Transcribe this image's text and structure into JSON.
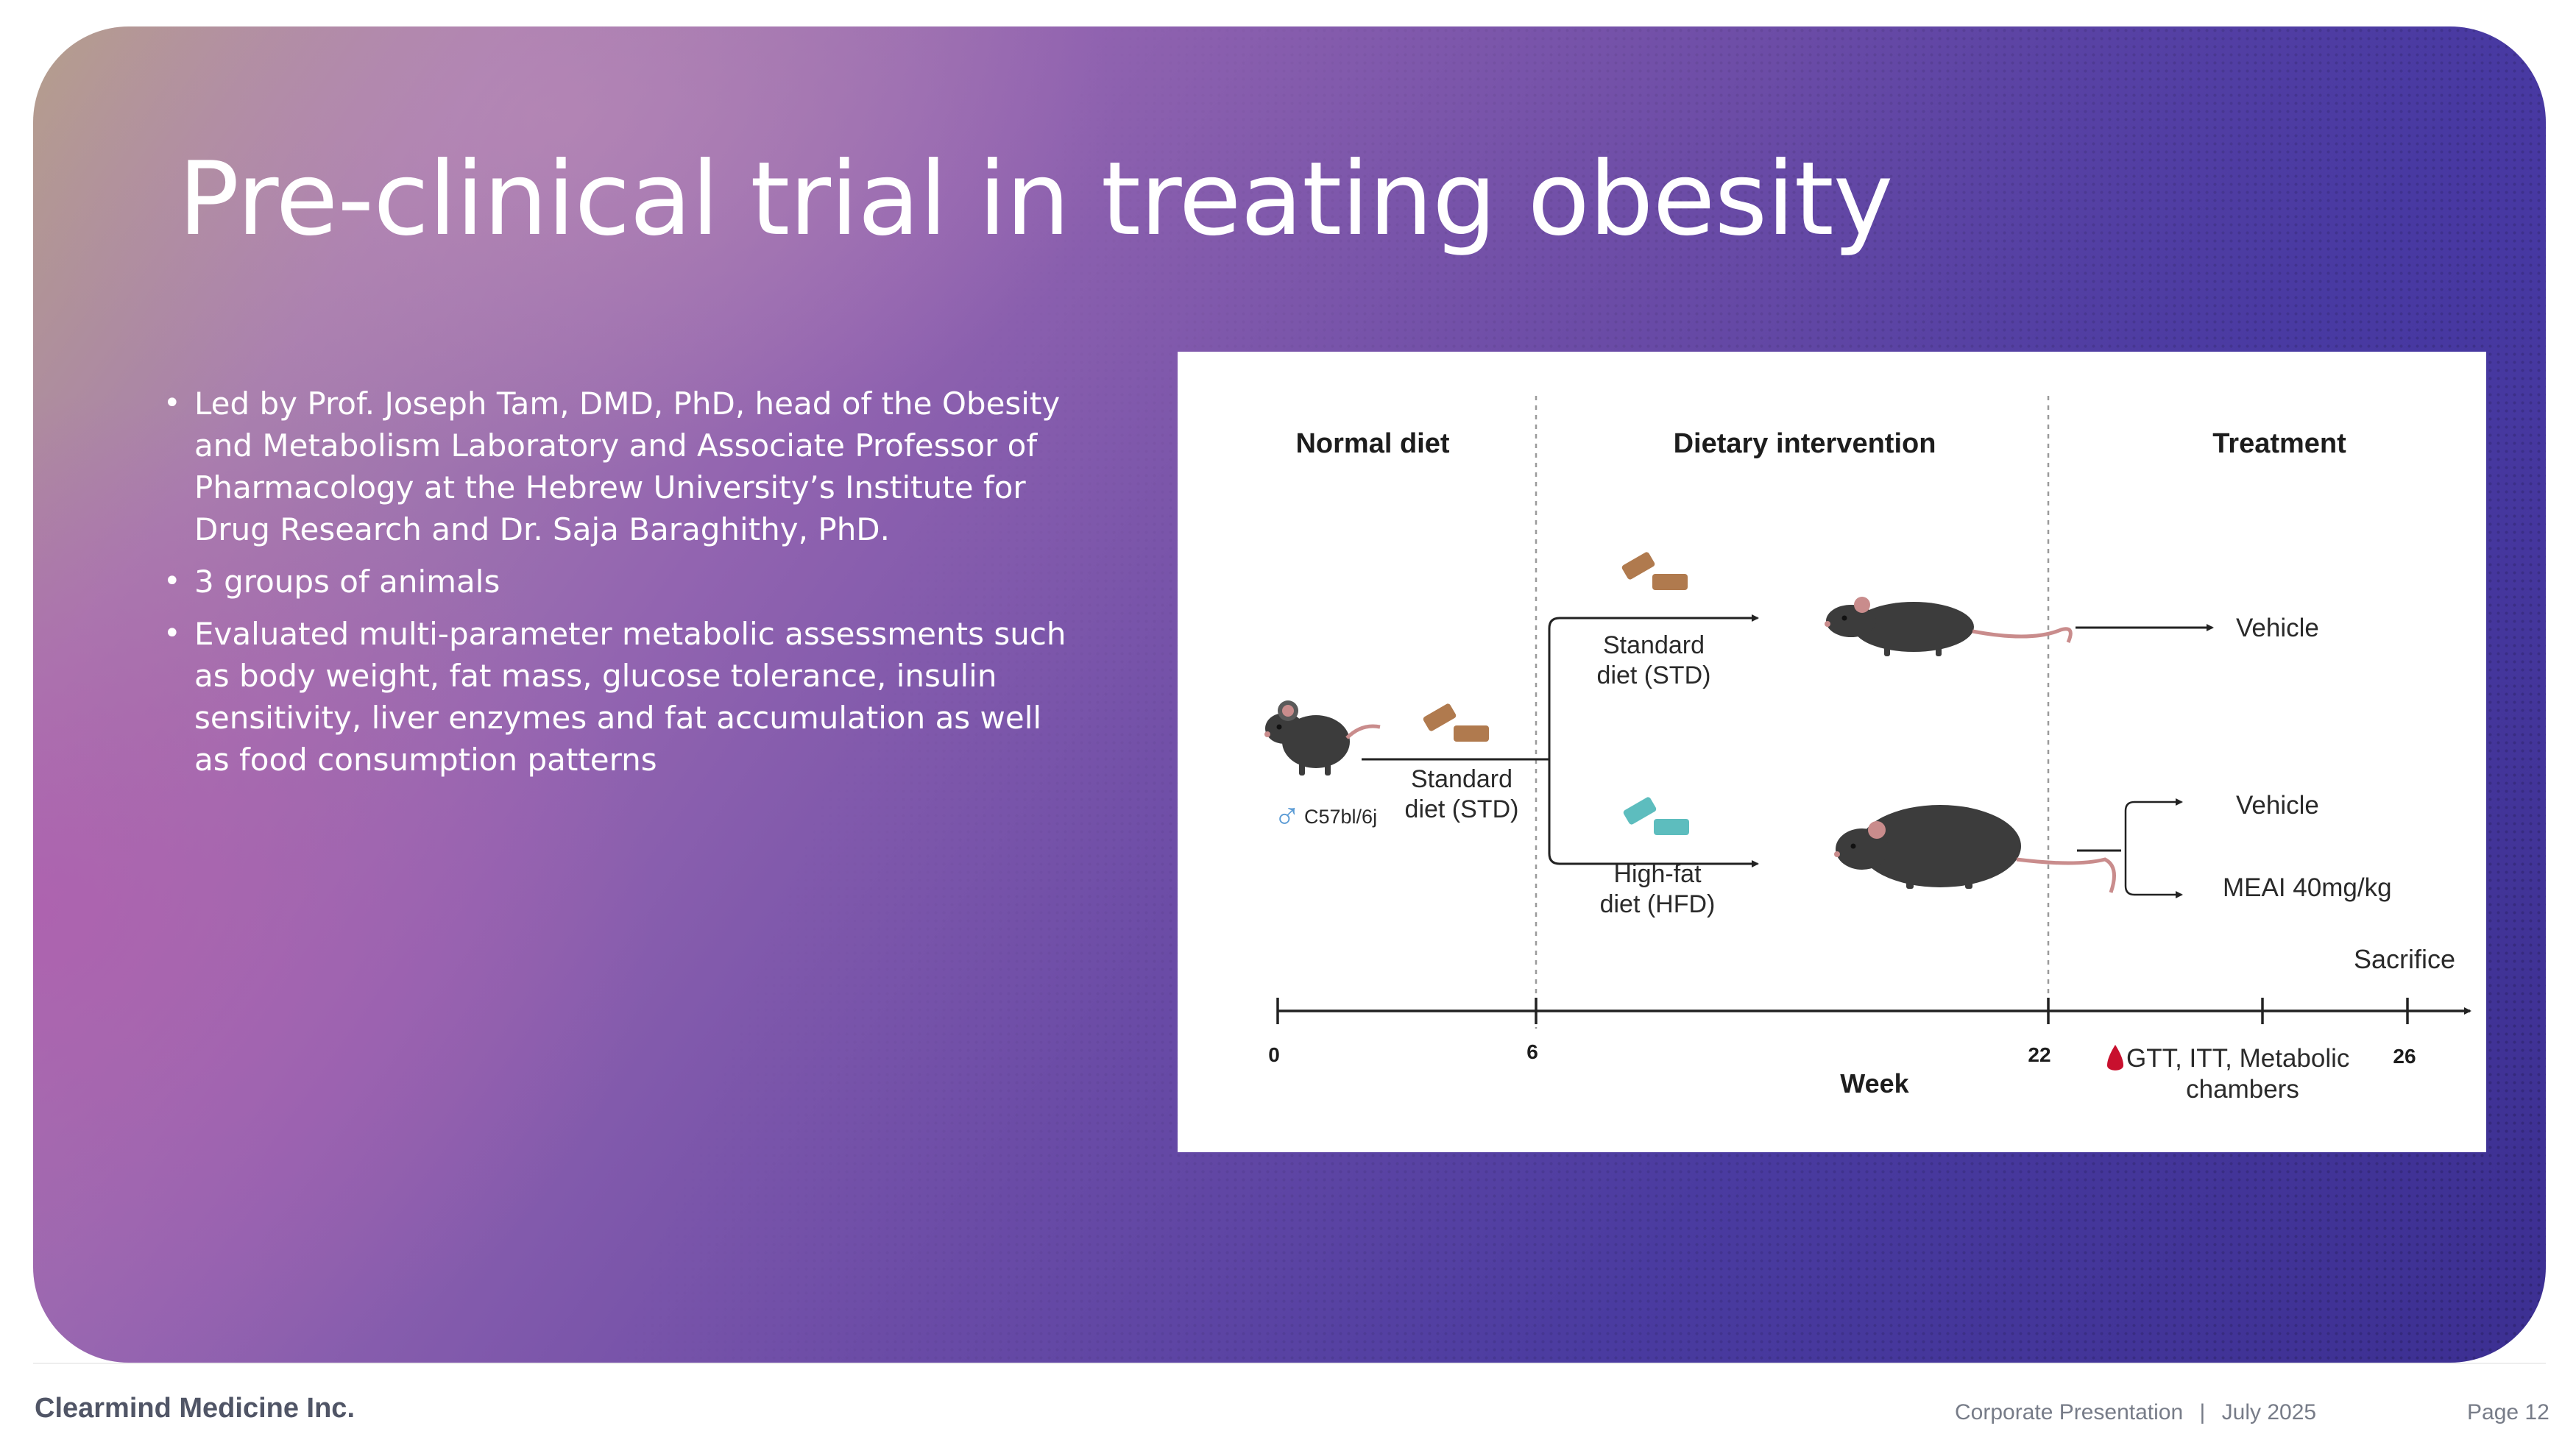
{
  "slide": {
    "title": "Pre-clinical trial in treating obesity",
    "bullets": [
      "Led by Prof. Joseph Tam, DMD, PhD, head of the Obesity and Metabolism Laboratory and Associate Professor of Pharmacology at the Hebrew University’s Institute for Drug Research and Dr. Saja Baraghithy, PhD.",
      "3 groups of animals",
      "Evaluated multi-parameter metabolic assessments such as body weight, fat mass, glucose tolerance, insulin sensitivity, liver enzymes and fat accumulation as well as food consumption patterns"
    ],
    "bullet_glyph": "•"
  },
  "diagram": {
    "phases": [
      "Normal diet",
      "Dietary intervention",
      "Treatment"
    ],
    "strain_symbol": "♂",
    "strain": "C57bl/6j",
    "initial_diet": [
      "Standard",
      "diet (STD)"
    ],
    "std_branch": [
      "Standard",
      "diet (STD)"
    ],
    "hfd_branch": [
      "High-fat",
      "diet (HFD)"
    ],
    "treatments": {
      "std_group": "Vehicle",
      "hfd_group_1": "Vehicle",
      "hfd_group_2": "MEAI 40mg/kg"
    },
    "sacrifice_label": "Sacrifice",
    "timeline": {
      "axis_label": "Week",
      "ticks": [
        "0",
        "6",
        "22",
        "26"
      ],
      "tests": [
        "GTT, ITT, Metabolic",
        "chambers"
      ]
    },
    "colors": {
      "standard_chow": "#b07a4e",
      "hfd_chow": "#5dbdbe",
      "mouse": "#3c3c3c",
      "blood_drop": "#c8102e",
      "male_symbol": "#5b9bd5"
    }
  },
  "footer": {
    "company": "Clearmind Medicine Inc.",
    "presentation": "Corporate Presentation",
    "separator": "|",
    "date": "July 2025",
    "page": "Page 12"
  }
}
